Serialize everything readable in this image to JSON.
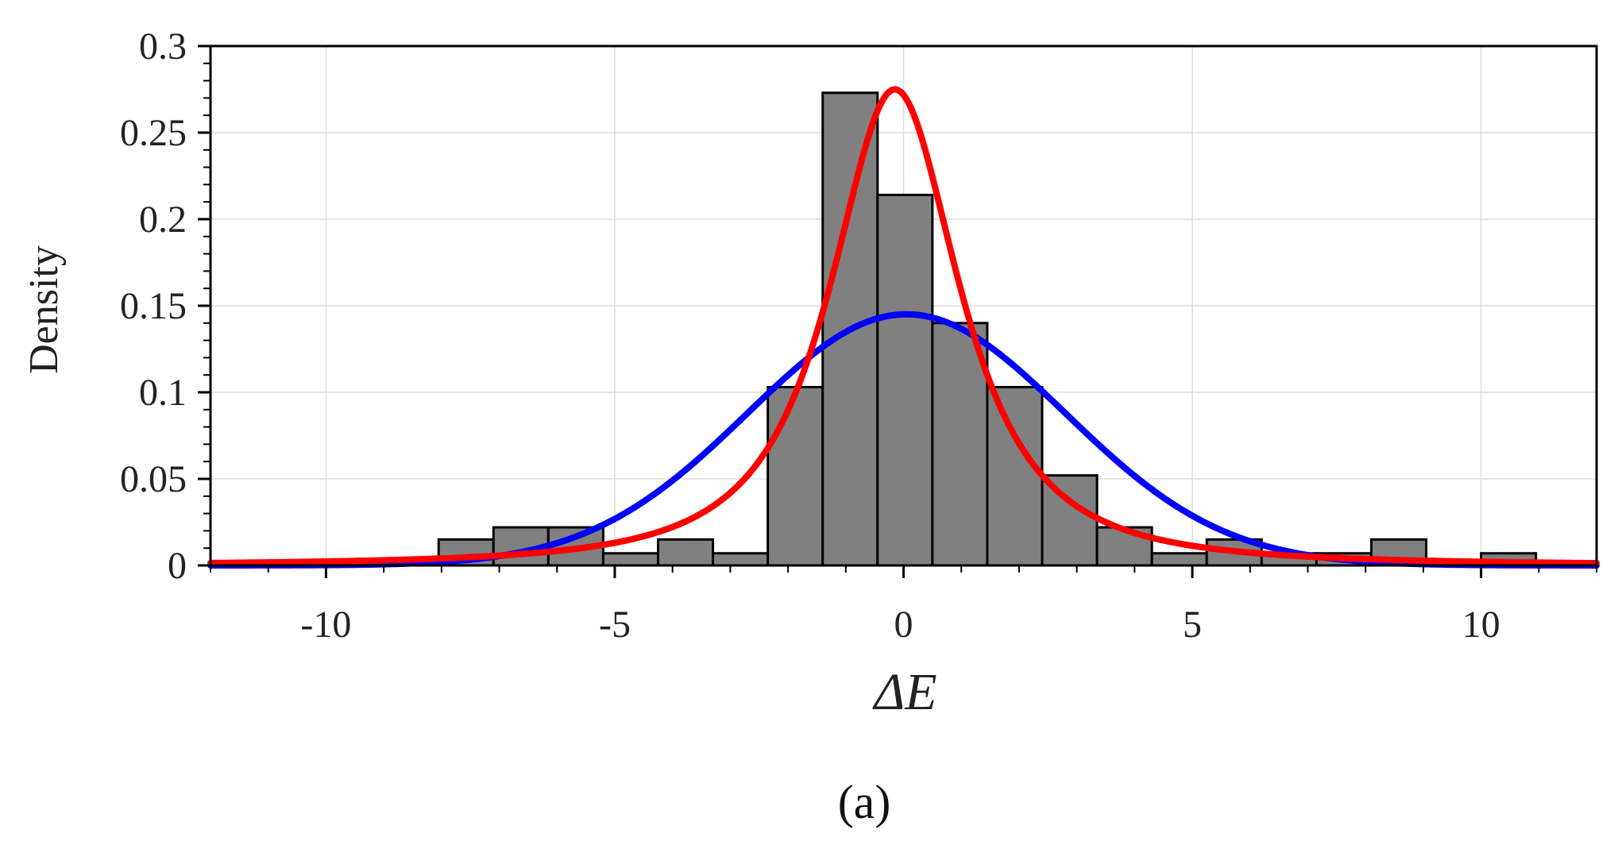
{
  "chart_data": {
    "type": "bar",
    "title": "",
    "xlabel": "ΔE",
    "ylabel": "Density",
    "panel_label": "(a)",
    "xlim": [
      -12,
      12
    ],
    "ylim": [
      0,
      0.3
    ],
    "xticks": [
      -10,
      -5,
      0,
      5,
      10
    ],
    "xtick_labels": [
      "-10",
      "-5",
      "0",
      "5",
      "10"
    ],
    "yticks": [
      0,
      0.05,
      0.1,
      0.15,
      0.2,
      0.25,
      0.3
    ],
    "ytick_labels": [
      "0",
      "0.05",
      "0.1",
      "0.15",
      "0.2",
      "0.25",
      "0.3"
    ],
    "grid": true,
    "bin_edges": [
      -8.05,
      -7.1,
      -6.15,
      -5.2,
      -4.25,
      -3.3,
      -2.35,
      -1.4,
      -0.45,
      0.5,
      1.45,
      2.4,
      3.35,
      4.3,
      5.25,
      6.2,
      7.15,
      8.1,
      9.05,
      10.0,
      10.95
    ],
    "values": [
      0.015,
      0.022,
      0.022,
      0.007,
      0.015,
      0.007,
      0.103,
      0.273,
      0.214,
      0.14,
      0.103,
      0.052,
      0.022,
      0.007,
      0.015,
      0.007,
      0.007,
      0.015,
      0.0,
      0.007
    ],
    "series": [
      {
        "kind": "normal",
        "mean": 0.05,
        "sd": 2.75,
        "color": "#0000ff"
      },
      {
        "kind": "peaked",
        "center": -0.15,
        "peak": 0.275,
        "width": 1.25,
        "color": "#ff0000"
      }
    ],
    "bar_color": "#808080",
    "bar_edge_color": "#000000",
    "grid_color": "#dddddd"
  }
}
